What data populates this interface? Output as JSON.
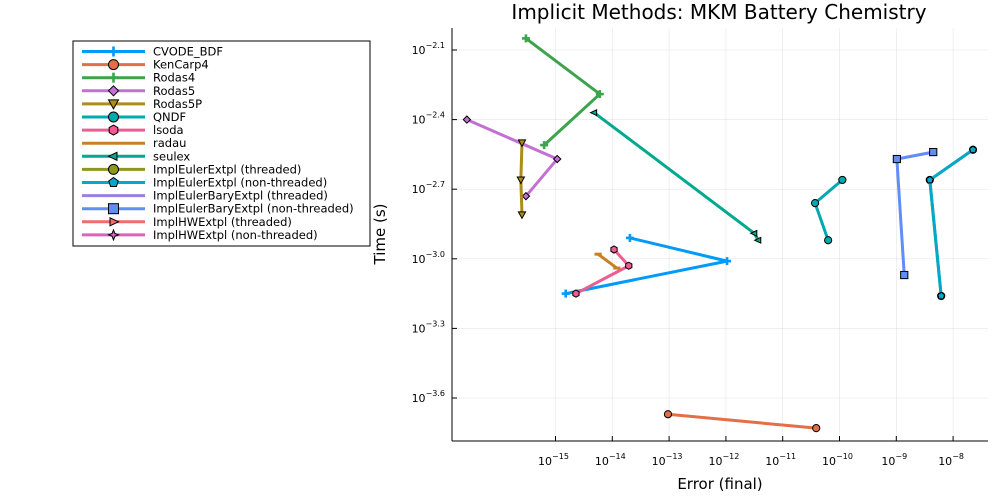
{
  "chart_data": {
    "type": "line",
    "title": "Implicit Methods: MKM Battery Chemistry",
    "xlabel": "Error (final)",
    "ylabel": "Time (s)",
    "xscale": "log10",
    "yscale": "log10",
    "xlim_log10": [
      -16.8,
      -7.4
    ],
    "ylim_log10": [
      -3.86,
      -2.05
    ],
    "x_ticks_log10": [
      -15,
      -14,
      -13,
      -12,
      -11,
      -10,
      -9,
      -8
    ],
    "x_tick_labels": [
      {
        "base": "10",
        "exp": "−15"
      },
      {
        "base": "10",
        "exp": "−14"
      },
      {
        "base": "10",
        "exp": "−13"
      },
      {
        "base": "10",
        "exp": "−12"
      },
      {
        "base": "10",
        "exp": "−11"
      },
      {
        "base": "10",
        "exp": "−10"
      },
      {
        "base": "10",
        "exp": "−9"
      },
      {
        "base": "10",
        "exp": "−8"
      }
    ],
    "y_ticks_log10": [
      -2.1,
      -2.4,
      -2.7,
      -3.0,
      -3.3,
      -3.6
    ],
    "y_tick_labels": [
      {
        "base": "10",
        "exp": "−2.1"
      },
      {
        "base": "10",
        "exp": "−2.4"
      },
      {
        "base": "10",
        "exp": "−2.7"
      },
      {
        "base": "10",
        "exp": "−3.0"
      },
      {
        "base": "10",
        "exp": "−3.3"
      },
      {
        "base": "10",
        "exp": "−3.6"
      }
    ],
    "grid": true,
    "legend_position": "outer-left",
    "series": [
      {
        "name": "CVODE_BDF",
        "color": "#009af9",
        "marker": "cross",
        "log10_error": [
          -13.69,
          -11.98,
          -14.82
        ],
        "log10_time": [
          -2.91,
          -3.01,
          -3.15
        ]
      },
      {
        "name": "KenCarp4",
        "color": "#e26f46",
        "marker": "circle",
        "log10_error": [
          -13.02,
          -10.41
        ],
        "log10_time": [
          -3.67,
          -3.73
        ]
      },
      {
        "name": "Rodas4",
        "color": "#3da44d",
        "marker": "cross",
        "log10_error": [
          -15.52,
          -14.22,
          -15.2
        ],
        "log10_time": [
          -2.05,
          -2.29,
          -2.51
        ]
      },
      {
        "name": "Rodas5",
        "color": "#c271d2",
        "marker": "diamond",
        "log10_error": [
          -16.56,
          -14.97,
          -15.52
        ],
        "log10_time": [
          -2.4,
          -2.57,
          -2.73
        ]
      },
      {
        "name": "Rodas5P",
        "color": "#ac8d18",
        "marker": "dtriangle",
        "log10_error": [
          -15.59,
          -15.61,
          -15.59
        ],
        "log10_time": [
          -2.5,
          -2.66,
          -2.81
        ]
      },
      {
        "name": "QNDF",
        "color": "#00a9ad",
        "marker": "circle",
        "log10_error": [
          -9.95,
          -10.43,
          -10.2
        ],
        "log10_time": [
          -2.66,
          -2.76,
          -2.92
        ]
      },
      {
        "name": "lsoda",
        "color": "#ed5d92",
        "marker": "hexagon",
        "log10_error": [
          -13.97,
          -13.71,
          -14.64
        ],
        "log10_time": [
          -2.96,
          -3.03,
          -3.15
        ]
      },
      {
        "name": "radau",
        "color": "#c68125",
        "marker": "hline",
        "log10_error": [
          -14.25,
          -13.92
        ],
        "log10_time": [
          -2.98,
          -3.04
        ]
      },
      {
        "name": "seulex",
        "color": "#00a98d",
        "marker": "ltriangle",
        "log10_error": [
          -14.32,
          -11.5,
          -11.43
        ],
        "log10_time": [
          -2.37,
          -2.89,
          -2.92
        ]
      },
      {
        "name": "ImplEulerExtpl (threaded)",
        "color": "#8e971e",
        "marker": "circle",
        "log10_error": [
          -7.65,
          -8.41,
          -8.21
        ],
        "log10_time": [
          -2.53,
          -2.66,
          -3.16
        ]
      },
      {
        "name": "ImplEulerExtpl (non-threaded)",
        "color": "#00a8cb",
        "marker": "pentagon",
        "log10_error": [
          -7.65,
          -8.41,
          -8.21
        ],
        "log10_time": [
          -2.53,
          -2.66,
          -3.16
        ]
      },
      {
        "name": "ImplEulerBaryExtpl (threaded)",
        "color": "#9b7fe9",
        "marker": "none",
        "log10_error": [
          -8.35,
          -8.99
        ],
        "log10_time": [
          -2.54,
          -2.57
        ]
      },
      {
        "name": "ImplEulerBaryExtpl (non-threaded)",
        "color": "#618df6",
        "marker": "square",
        "log10_error": [
          -8.35,
          -8.99,
          -8.86
        ],
        "log10_time": [
          -2.54,
          -2.57,
          -3.07
        ]
      },
      {
        "name": "ImplHWExtpl (threaded)",
        "color": "#f16c6b",
        "marker": "rtriangle",
        "log10_error": [],
        "log10_time": []
      },
      {
        "name": "ImplHWExtpl (non-threaded)",
        "color": "#dc63b9",
        "marker": "star4",
        "log10_error": [],
        "log10_time": []
      }
    ]
  }
}
